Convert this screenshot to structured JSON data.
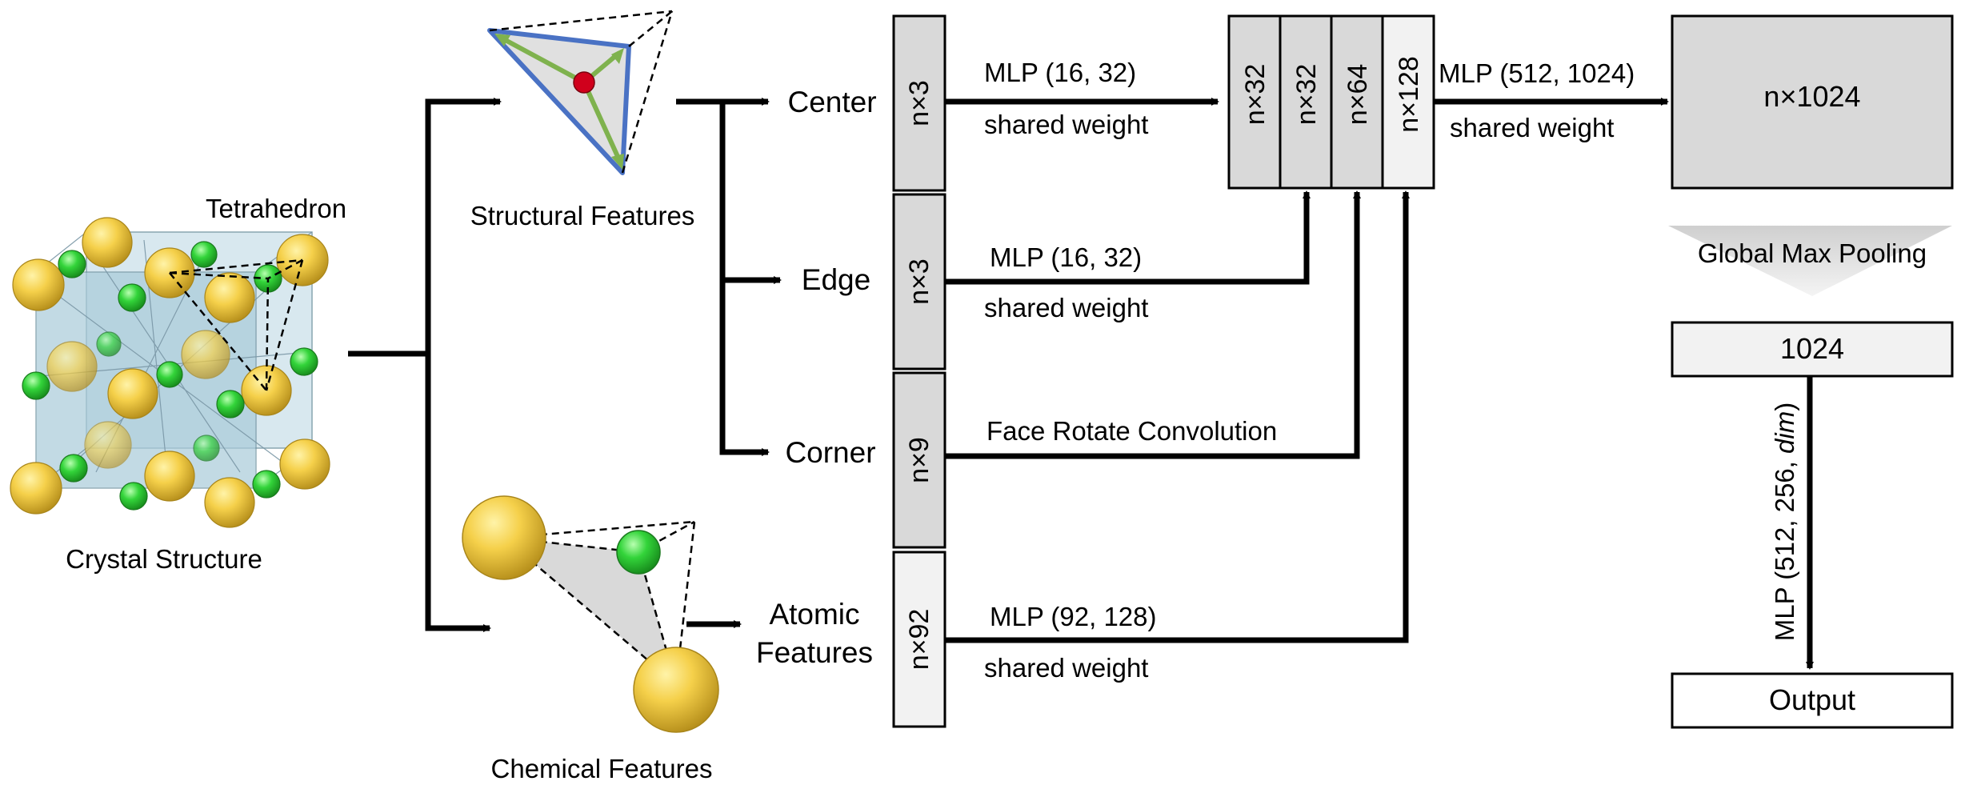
{
  "labels": {
    "tetrahedron": "Tetrahedron",
    "crystal_structure": "Crystal Structure",
    "structural_features": "Structural Features",
    "chemical_features": "Chemical Features",
    "center": "Center",
    "edge": "Edge",
    "corner": "Corner",
    "atomic_line1": "Atomic",
    "atomic_line2": "Features"
  },
  "inputs": {
    "center_dim": "n×3",
    "edge_dim": "n×3",
    "corner_dim": "n×9",
    "atomic_dim": "n×92"
  },
  "operations": {
    "center_mlp": "MLP (16, 32)",
    "center_shared": "shared weight",
    "edge_mlp": "MLP (16, 32)",
    "edge_shared": "shared weight",
    "corner_op": "Face Rotate Convolution",
    "atomic_mlp": "MLP (92, 128)",
    "atomic_shared": "shared weight",
    "concat_mlp": "MLP (512, 1024)",
    "concat_shared": "shared weight",
    "pooling": "Global Max Pooling",
    "head_mlp_prefix": "MLP (512, 256, ",
    "head_mlp_dim": "dim",
    "head_mlp_suffix": ")"
  },
  "concat": {
    "block1": "n×32",
    "block2": "n×32",
    "block3": "n×64",
    "block4": "n×128"
  },
  "outputs": {
    "feature_map": "n×1024",
    "global_vector": "1024",
    "final": "Output"
  },
  "colors": {
    "block_fill": "#d9d9d9",
    "light_block_fill": "#f2f2f2",
    "atom_yellow": "#f5d04a",
    "atom_green": "#33d43a",
    "center_red": "#d0001c",
    "tetra_blue": "#4a72c4",
    "tetra_green": "#7fb24e",
    "crystal_fill": "#b7d3e0"
  }
}
